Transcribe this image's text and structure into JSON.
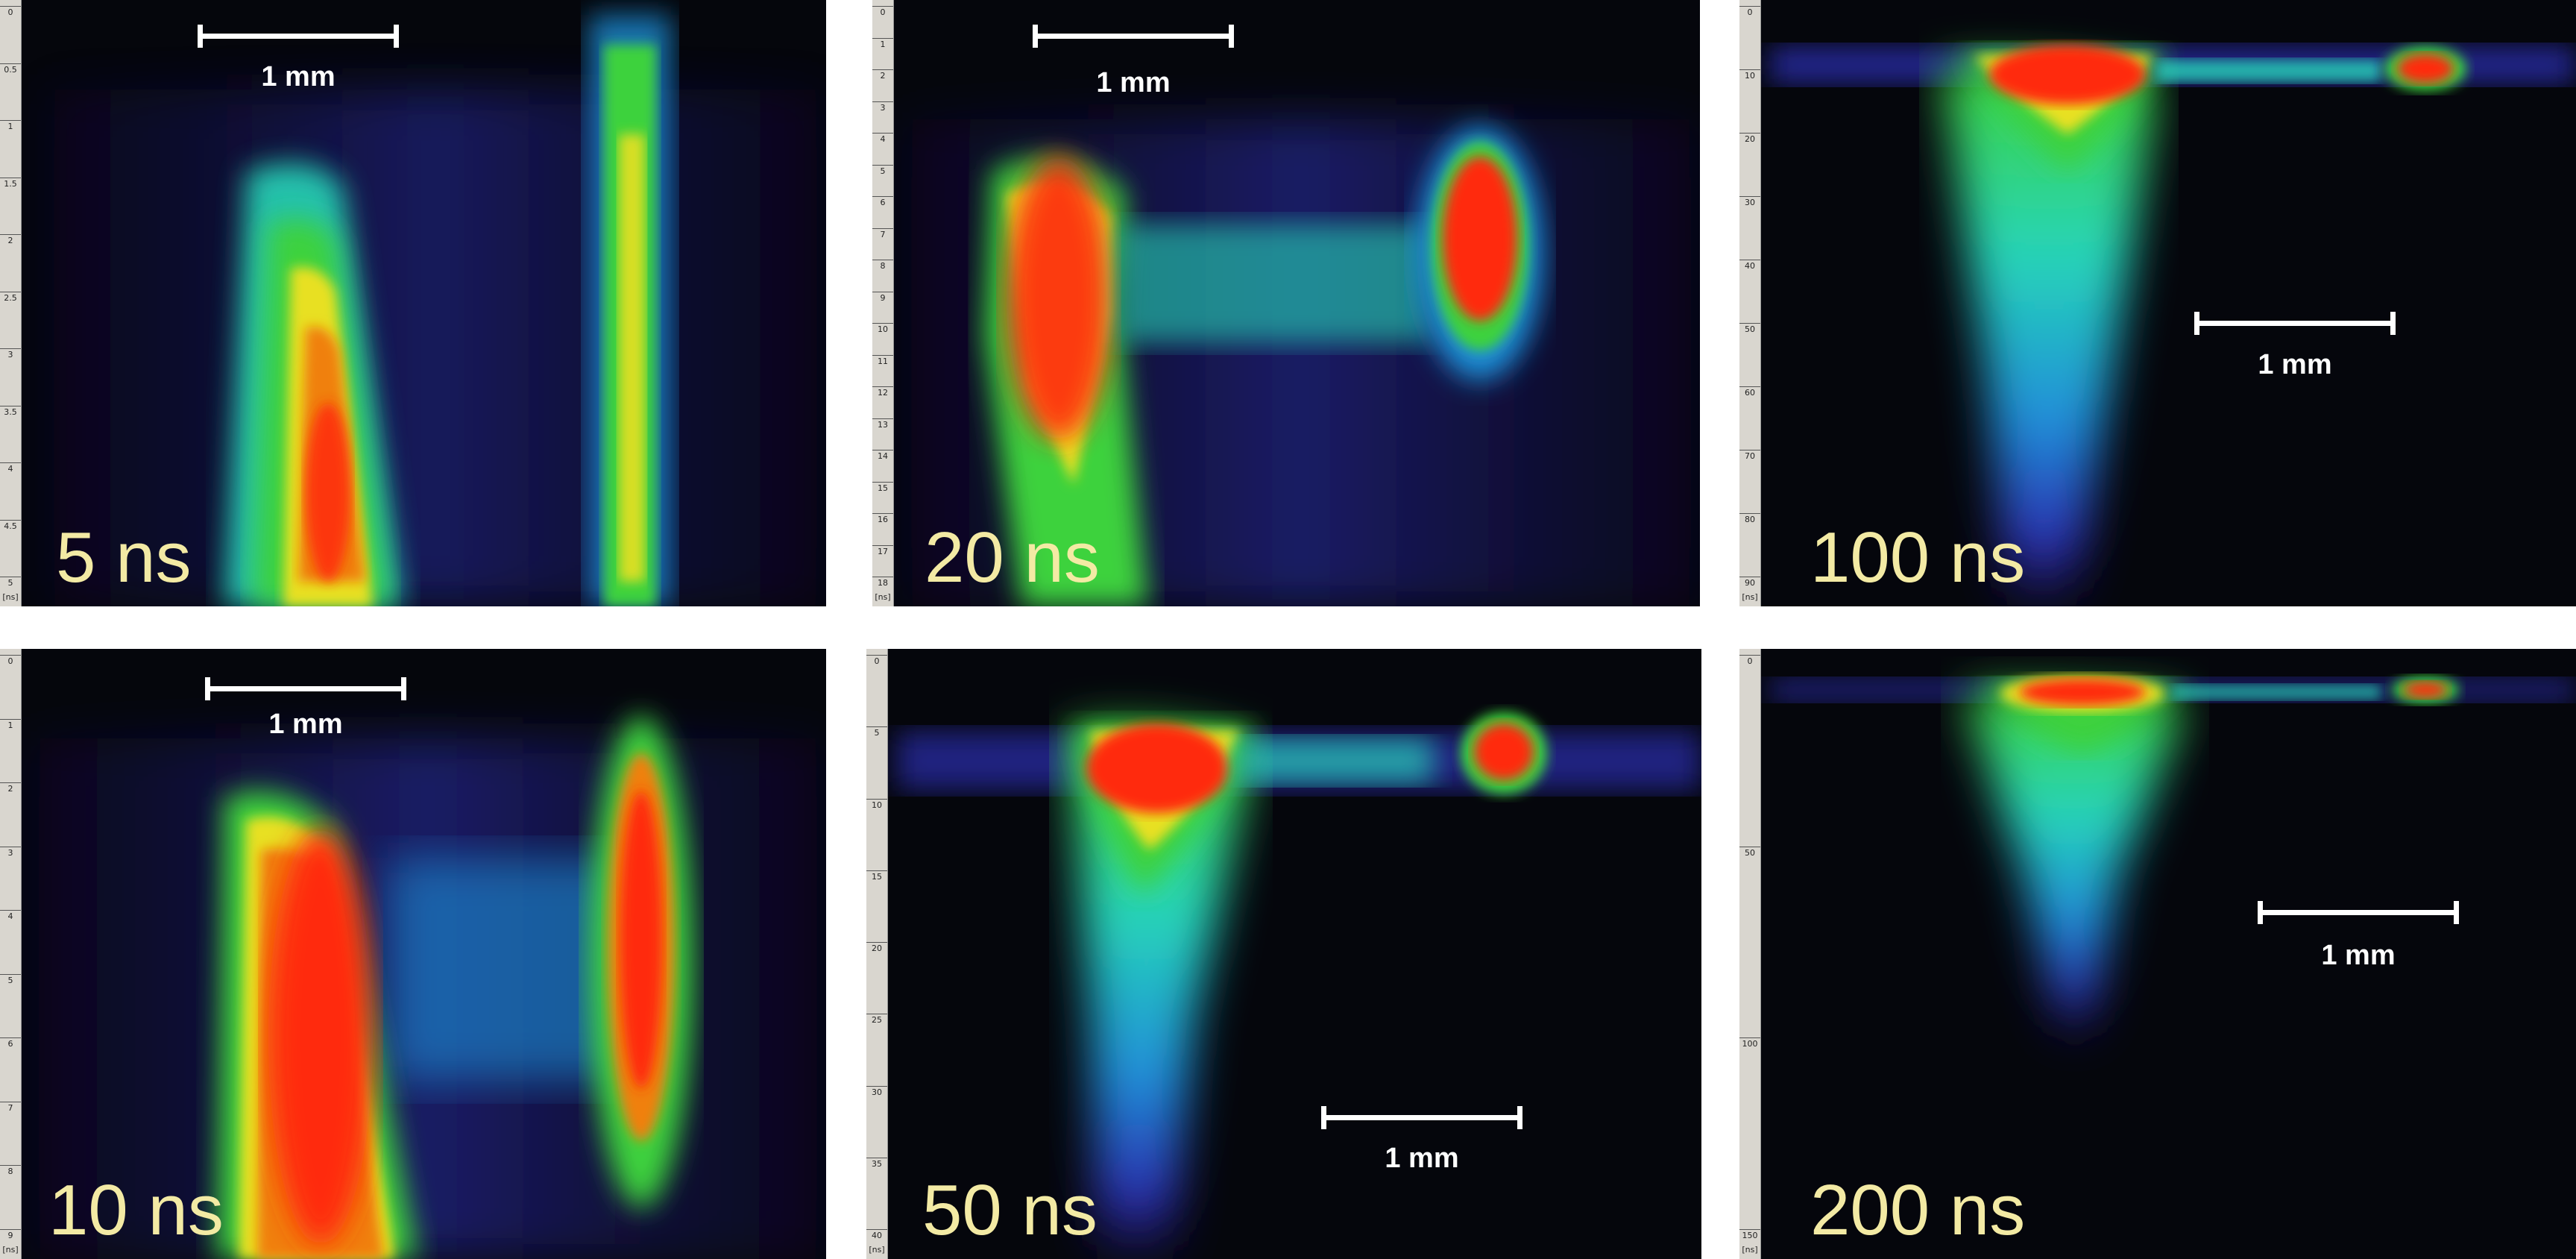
{
  "panels": [
    {
      "id": "p5",
      "time_label": "5 ns",
      "scalebar_label": "1 mm",
      "ruler_labels": [
        "0",
        "0.5",
        "1",
        "1.5",
        "2",
        "2.5",
        "3",
        "3.5",
        "4",
        "4.5",
        "5",
        "[ns]"
      ]
    },
    {
      "id": "p20",
      "time_label": "20 ns",
      "scalebar_label": "1 mm",
      "ruler_labels": [
        "0",
        "1",
        "2",
        "3",
        "4",
        "5",
        "6",
        "7",
        "8",
        "9",
        "10",
        "11",
        "12",
        "13",
        "14",
        "15",
        "16",
        "17",
        "18",
        "[ns]"
      ]
    },
    {
      "id": "p100",
      "time_label": "100 ns",
      "scalebar_label": "1 mm",
      "ruler_labels": [
        "0",
        "10",
        "20",
        "30",
        "40",
        "50",
        "60",
        "70",
        "80",
        "90",
        "[ns]"
      ]
    },
    {
      "id": "p10",
      "time_label": "10 ns",
      "scalebar_label": "1 mm",
      "ruler_labels": [
        "0",
        "1",
        "2",
        "3",
        "4",
        "5",
        "6",
        "7",
        "8",
        "9",
        "[ns]"
      ]
    },
    {
      "id": "p50",
      "time_label": "50 ns",
      "scalebar_label": "1 mm",
      "ruler_labels": [
        "0",
        "5",
        "10",
        "15",
        "20",
        "25",
        "30",
        "35",
        "40",
        "[ns]"
      ]
    },
    {
      "id": "p200",
      "time_label": "200 ns",
      "scalebar_label": "1 mm",
      "ruler_labels": [
        "0",
        "50",
        "100",
        "150",
        "[ns]"
      ]
    }
  ],
  "colors": {
    "background": "#05060c",
    "time_label": "#f3eaa4",
    "scalebar": "#ffffff",
    "palette": [
      "#1a1060",
      "#2c2fb0",
      "#1f8fd8",
      "#27d4b8",
      "#3cd23c",
      "#e8e020",
      "#f08010",
      "#ff2a10"
    ]
  }
}
